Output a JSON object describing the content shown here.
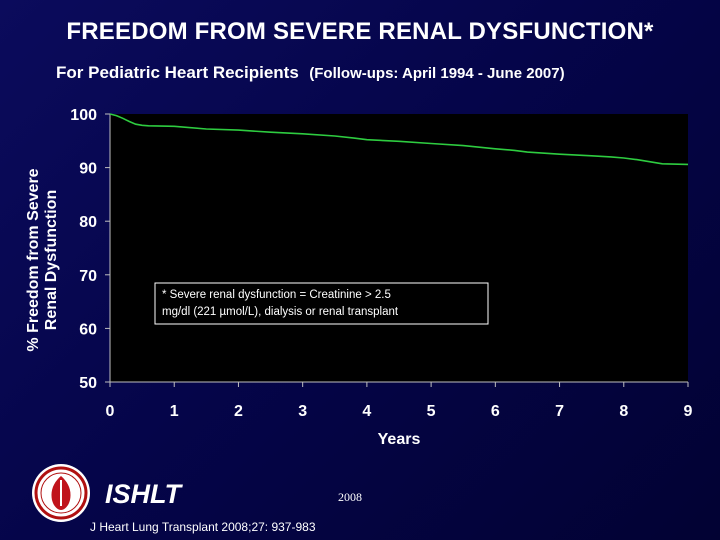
{
  "title": "FREEDOM FROM SEVERE RENAL DYSFUNCTION*",
  "subtitle_main": "For Pediatric Heart Recipients",
  "subtitle_followup": "(Follow-ups: April 1994 - June 2007)",
  "footer": {
    "org": "ISHLT",
    "year": "2008",
    "citation": "J Heart Lung Transplant 2008;27: 937-983"
  },
  "colors": {
    "background": "#05054a",
    "plot_area": "#000000",
    "line": "#2ecc40",
    "text": "#ffffff"
  },
  "chart_data": {
    "type": "line",
    "title": "FREEDOM FROM SEVERE RENAL DYSFUNCTION*",
    "xlabel": "Years",
    "ylabel_lines": [
      "% Freedom from Severe",
      "Renal Dysfunction"
    ],
    "xlim": [
      0,
      9
    ],
    "ylim": [
      50,
      100
    ],
    "x_ticks": [
      "0",
      "1",
      "2",
      "3",
      "4",
      "5",
      "6",
      "7",
      "8",
      "9"
    ],
    "y_ticks": [
      "50",
      "60",
      "70",
      "80",
      "90",
      "100"
    ],
    "grid": false,
    "annotation_lines": [
      "* Severe renal dysfunction = Creatinine > 2.5",
      "mg/dl (221 µmol/L), dialysis or renal transplant"
    ],
    "series": [
      {
        "x": [
          0,
          0.1,
          0.2,
          0.3,
          0.4,
          0.5,
          0.6,
          1.0,
          1.5,
          2.0,
          2.5,
          3.0,
          3.5,
          3.8,
          4.0,
          4.5,
          5.0,
          5.5,
          6.0,
          6.3,
          6.5,
          7.0,
          7.5,
          7.8,
          8.0,
          8.2,
          8.4,
          8.6,
          9.0
        ],
        "y": [
          100,
          99.7,
          99.2,
          98.6,
          98.1,
          97.9,
          97.8,
          97.7,
          97.2,
          97.0,
          96.6,
          96.3,
          95.9,
          95.5,
          95.2,
          94.9,
          94.5,
          94.1,
          93.5,
          93.2,
          92.9,
          92.5,
          92.2,
          92.0,
          91.8,
          91.5,
          91.1,
          90.7,
          90.6
        ]
      }
    ]
  }
}
